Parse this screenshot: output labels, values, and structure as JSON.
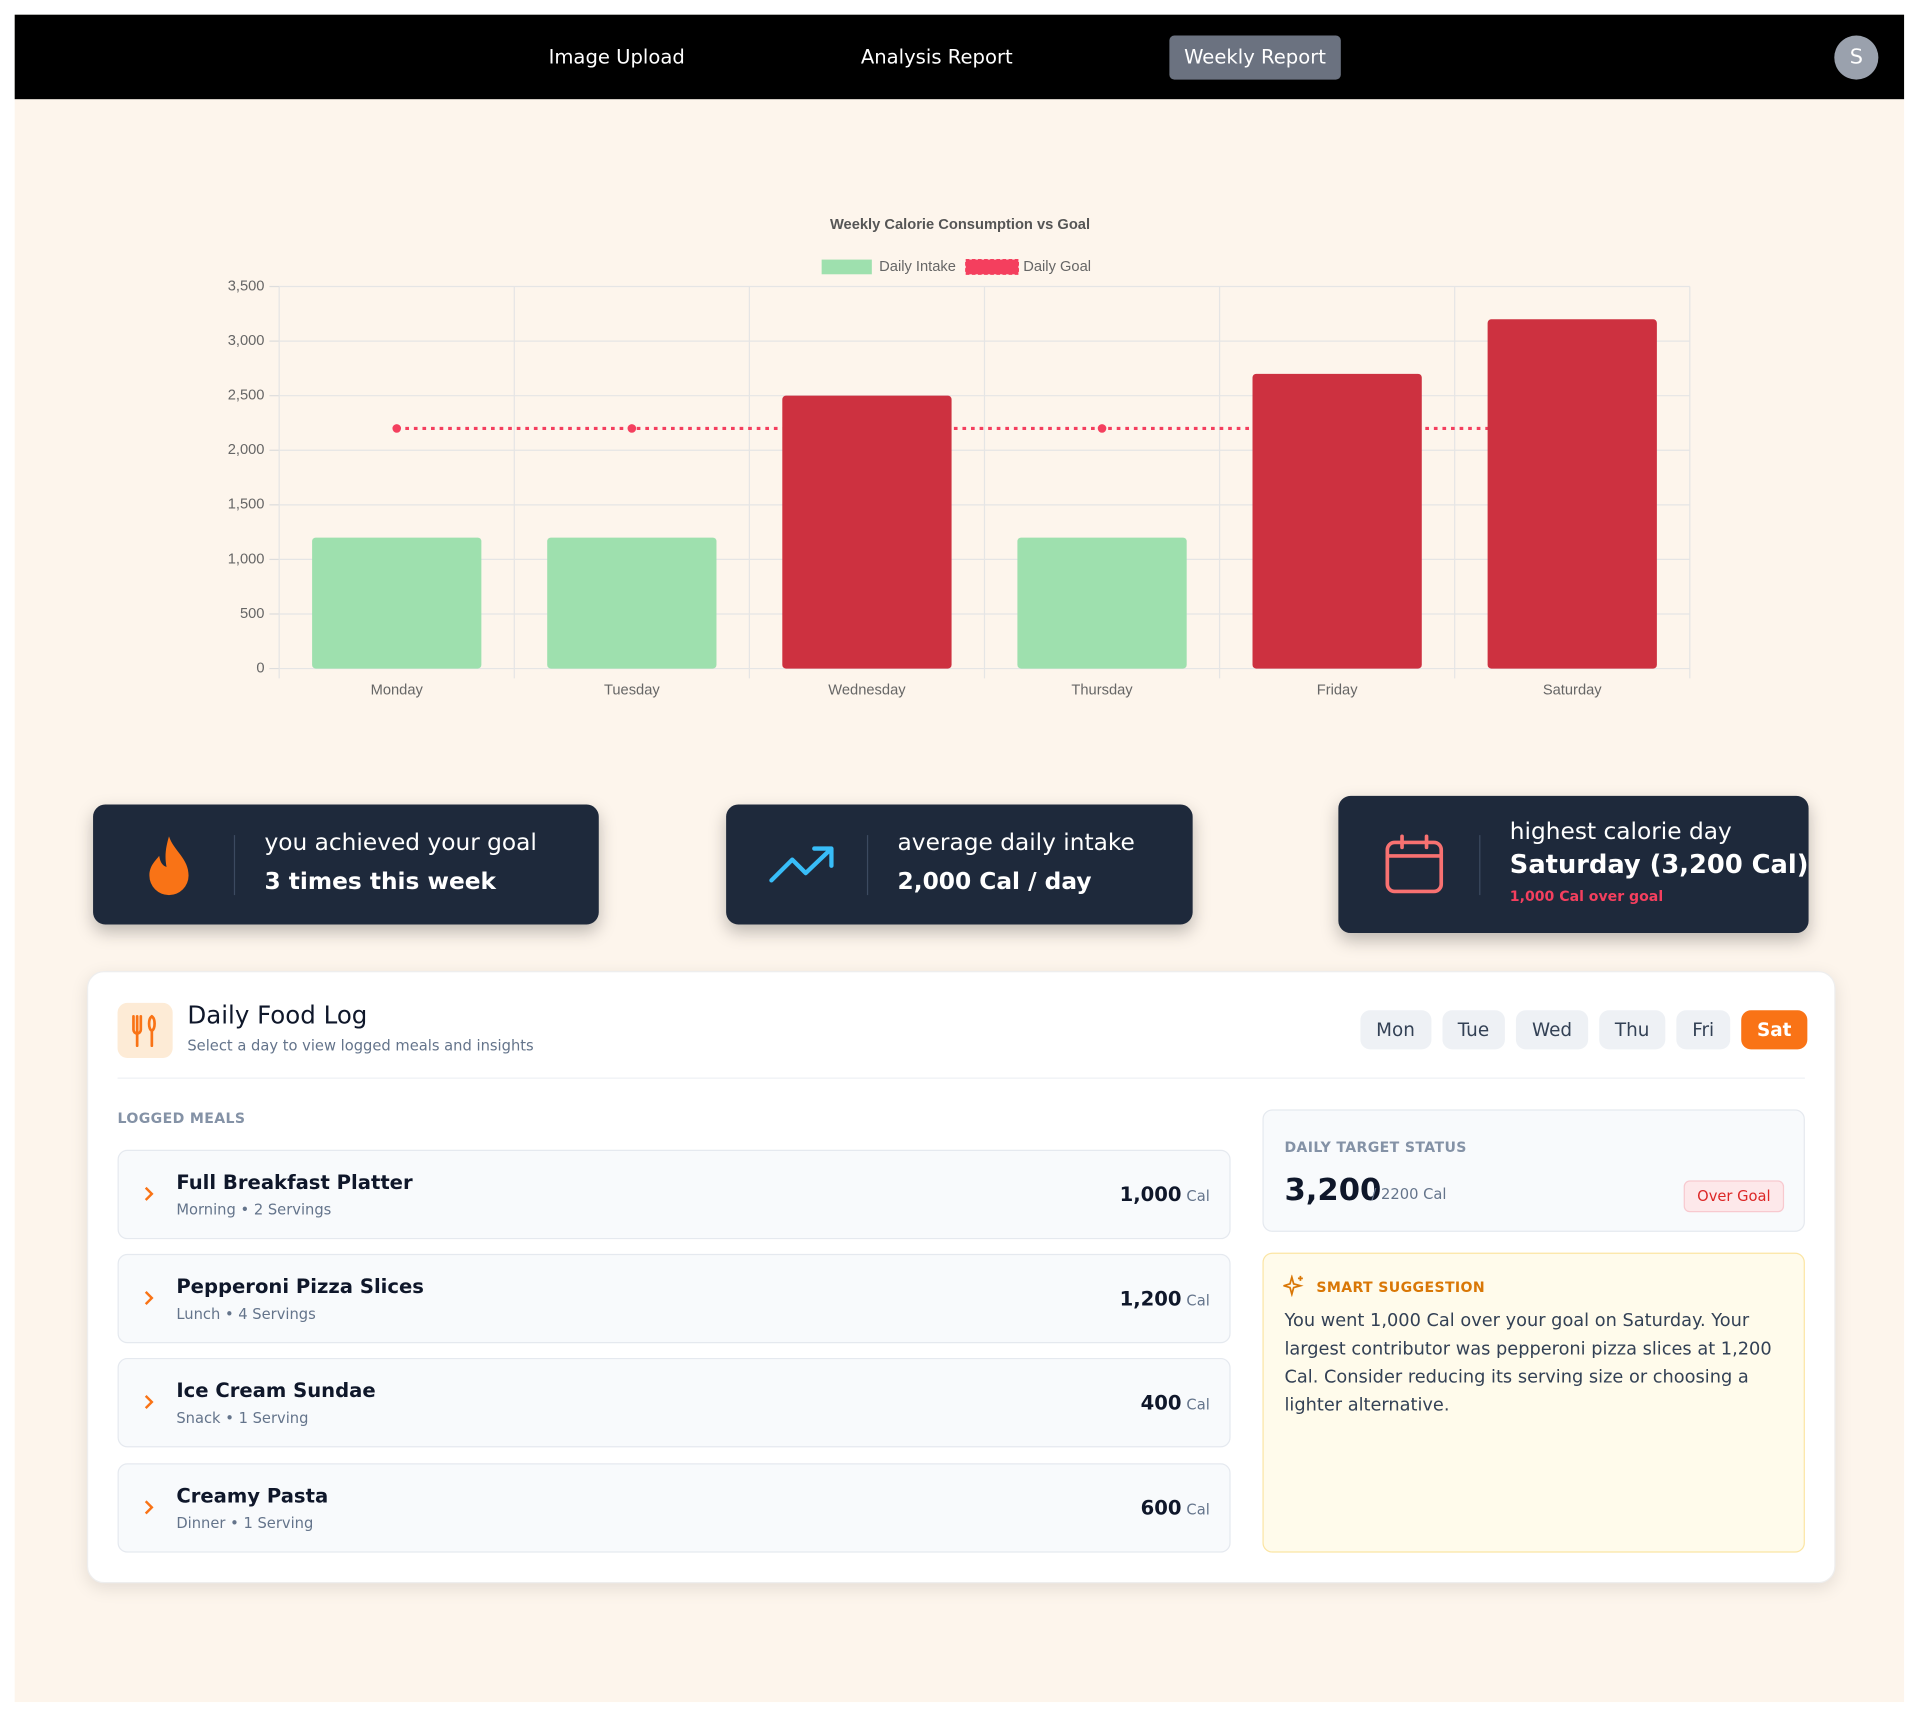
{
  "nav": {
    "items": [
      "Image Upload",
      "Analysis Report",
      "Weekly Report"
    ],
    "avatar": "S"
  },
  "chart_data": {
    "type": "bar",
    "title": "Weekly Calorie Consumption vs Goal",
    "categories": [
      "Monday",
      "Tuesday",
      "Wednesday",
      "Thursday",
      "Friday",
      "Saturday"
    ],
    "series": [
      {
        "name": "Daily Intake",
        "type": "bar",
        "color": "#9ee0ae",
        "colors": [
          "#9ee0ae",
          "#9ee0ae",
          "#cd3140",
          "#9ee0ae",
          "#cd3140",
          "#cd3140"
        ],
        "values": [
          1200,
          1200,
          2500,
          1200,
          2700,
          3200
        ]
      },
      {
        "name": "Daily Goal",
        "type": "line",
        "color": "#f43f5e",
        "values": [
          2200,
          2200,
          2200,
          2200,
          2200,
          2200
        ]
      }
    ],
    "ylim": [
      0,
      3500
    ],
    "yticks": [
      0,
      500,
      {
        "value": 1000,
        "label": "1,000"
      },
      {
        "value": 1500,
        "label": "1,500"
      },
      {
        "value": 2000,
        "label": "2,000"
      },
      {
        "value": 2500,
        "label": "2,500"
      },
      {
        "value": 3000,
        "label": "3,000"
      },
      {
        "value": 3500,
        "label": "3,500"
      }
    ],
    "grid": true
  },
  "stats": [
    {
      "line1": "you achieved your goal",
      "line2": "3 times this week"
    },
    {
      "line1": "average daily intake",
      "line2": "2,000 Cal / day"
    },
    {
      "line1": "highest calorie day",
      "line2": "Saturday (3,200 Cal)",
      "note": "1,000 Cal over goal"
    }
  ],
  "food_log": {
    "title": "Daily Food Log",
    "subtitle": "Select a day to view logged meals and insights",
    "days": [
      "Mon",
      "Tue",
      "Wed",
      "Thu",
      "Fri",
      "Sat"
    ],
    "meals_heading": "LOGGED MEALS",
    "meals": [
      {
        "name": "Full Breakfast Platter",
        "detail": "Morning • 2 Servings",
        "calories": "1,000",
        "unit": "Cal"
      },
      {
        "name": "Pepperoni Pizza Slices",
        "detail": "Lunch • 4 Servings",
        "calories": "1,200",
        "unit": "Cal"
      },
      {
        "name": "Ice Cream Sundae",
        "detail": "Snack • 1 Serving",
        "calories": "400",
        "unit": "Cal"
      },
      {
        "name": "Creamy Pasta",
        "detail": "Dinner • 1 Serving",
        "calories": "600",
        "unit": "Cal"
      }
    ],
    "status": {
      "heading": "DAILY TARGET STATUS",
      "value": "3,200",
      "target": "/ 2200 Cal",
      "badge": "Over Goal"
    },
    "suggestion": {
      "heading": "SMART SUGGESTION",
      "text": "You went 1,000 Cal over your goal on Saturday. Your largest contributor was pepperoni pizza slices at 1,200 Cal. Consider reducing its serving size or choosing a lighter alternative."
    }
  }
}
